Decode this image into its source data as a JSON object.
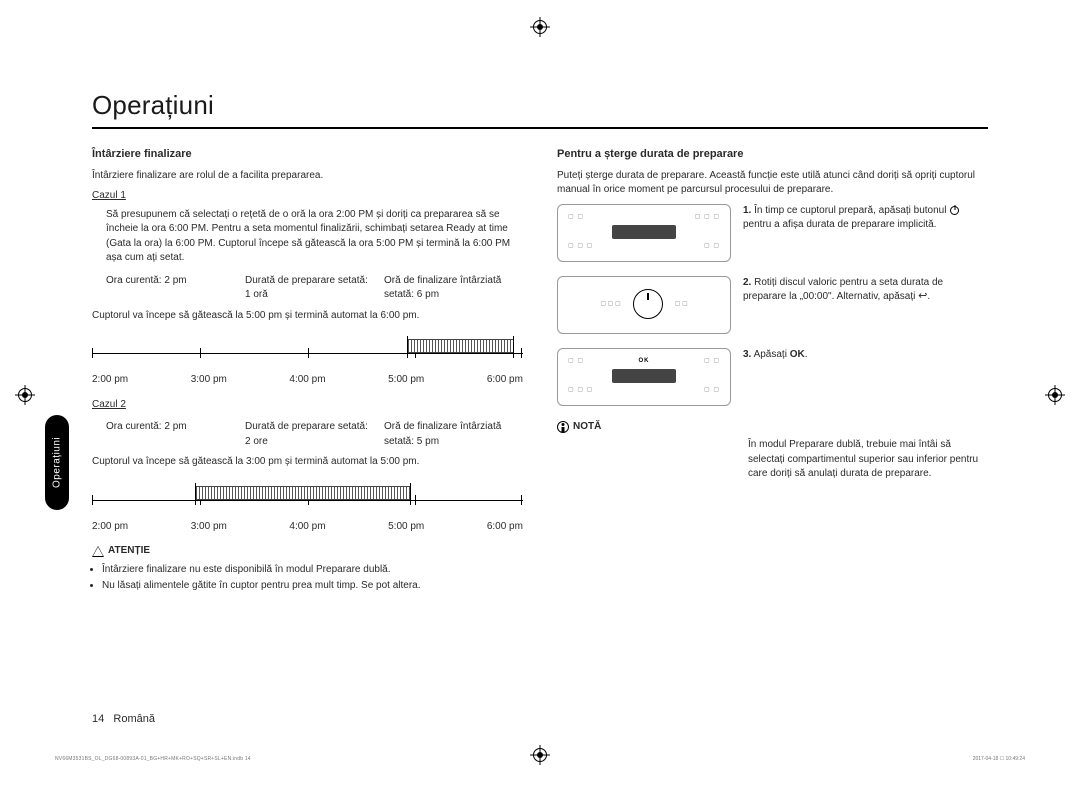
{
  "page": {
    "title": "Operațiuni",
    "number": "14",
    "language": "Română",
    "side_tab": "Operațiuni"
  },
  "left": {
    "h2": "Întârziere finalizare",
    "intro": "Întârziere finalizare are rolul de a facilita prepararea.",
    "case1_label": "Cazul 1",
    "case1_text": "Să presupunem că selectați o rețetă de o oră la ora 2:00 PM și doriți ca prepararea să se încheie la ora 6:00 PM. Pentru a seta momentul finalizării, schimbați setarea Ready at time (Gata la ora) la 6:00 PM. Cuptorul începe să gătească la ora 5:00 PM și termină la 6:00 PM așa cum ați setat.",
    "row1": {
      "a1": "Ora curentă: 2 pm",
      "b1": "Durată de preparare setată:",
      "b2": "1 oră",
      "c1": "Oră de finalizare întârziată",
      "c2": "setată: 6 pm"
    },
    "case1_outcome": "Cuptorul va începe să gătească la 5:00 pm și termină automat la 6:00 pm.",
    "timeline": {
      "labels": [
        "2:00 pm",
        "3:00 pm",
        "4:00 pm",
        "5:00 pm",
        "6:00 pm"
      ],
      "bar1_start_pct": 73,
      "bar1_width_pct": 25,
      "bar2_start_pct": 24,
      "bar2_width_pct": 50
    },
    "case2_label": "Cazul 2",
    "row2": {
      "a1": "Ora curentă: 2 pm",
      "b1": "Durată de preparare setată:",
      "b2": "2 ore",
      "c1": "Oră de finalizare întârziată",
      "c2": "setată: 5 pm"
    },
    "case2_outcome": "Cuptorul va începe să gătească la 3:00 pm și termină automat la 5:00 pm.",
    "warn_title": "ATENȚIE",
    "warn_items": [
      "Întârziere finalizare nu este disponibilă în modul Preparare dublă.",
      "Nu lăsați alimentele gătite în cuptor pentru prea mult timp. Se pot altera."
    ]
  },
  "right": {
    "h2": "Pentru a șterge durata de preparare",
    "intro": "Puteți șterge durata de preparare. Această funcție este utilă atunci când doriți să opriți cuptorul manual în orice moment pe parcursul procesului de preparare.",
    "step1_a": "1.",
    "step1_b": "În timp ce cuptorul prepară, apăsați butonul ",
    "step1_c": " pentru a afișa durata de preparare implicită.",
    "step2_a": "2.",
    "step2_b": "Rotiți discul valoric pentru a seta durata de preparare la „00:00\". Alternativ, apăsați ",
    "step2_c": ".",
    "step3_a": "3.",
    "step3_b": "Apăsați ",
    "step3_c": "OK",
    "step3_d": ".",
    "note_title": "NOTĂ",
    "note_text": "În modul Preparare dublă, trebuie mai întâi să selectați compartimentul superior sau inferior pentru care doriți să anulați durata de preparare."
  },
  "colors": {
    "text": "#2a2a2a",
    "rule": "#000000",
    "panel_border": "#999999",
    "display_bg": "#444444",
    "bar_stripe": "#555555"
  },
  "foot": {
    "left": "NV66M3531BS_OL_DG68-00893A-01_BG+HR+MK+RO+SQ+SR+SL+EN.indb   14",
    "right": "2017-04-18   ☐ 10:49:24"
  }
}
